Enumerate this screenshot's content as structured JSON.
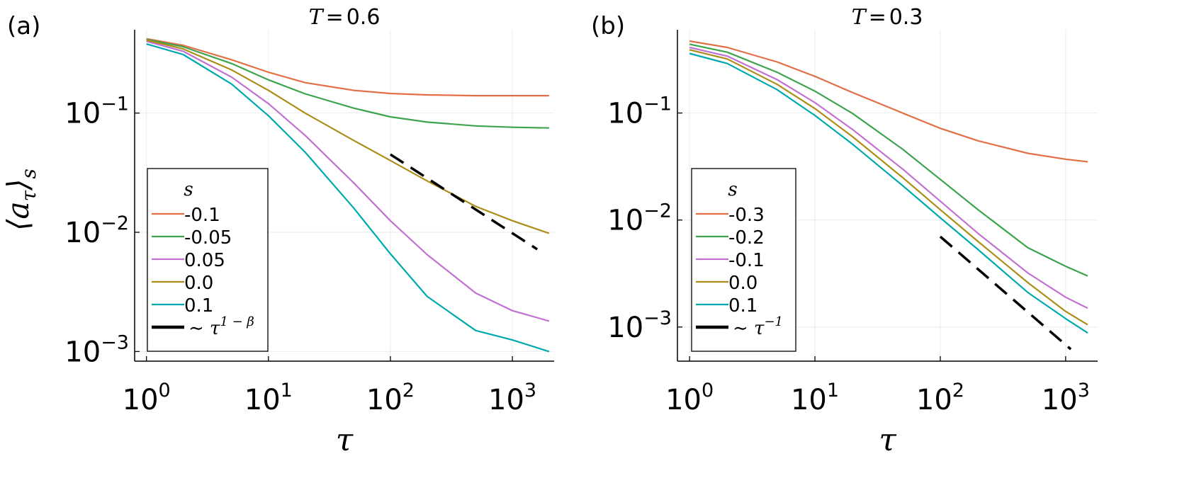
{
  "chart_data": [
    {
      "type": "line",
      "panel_label": "(a)",
      "title_var": "T",
      "title_eq": "=",
      "title_value": "0.6",
      "xlabel": "τ",
      "ylabel": "⟨a",
      "ylabel_sub1": "τ",
      "ylabel_close": "⟩",
      "ylabel_sub2": "s",
      "xscale": "log",
      "yscale": "log",
      "xlim": [
        0.8,
        2200
      ],
      "ylim": [
        0.00083,
        0.5
      ],
      "grid": true,
      "xticks": [
        {
          "value": 1,
          "base": "10",
          "exp": "0"
        },
        {
          "value": 10,
          "base": "10",
          "exp": "1"
        },
        {
          "value": 100,
          "base": "10",
          "exp": "2"
        },
        {
          "value": 1000,
          "base": "10",
          "exp": "3"
        }
      ],
      "yticks": [
        {
          "value": 0.1,
          "base": "10",
          "exp": "−1"
        },
        {
          "value": 0.01,
          "base": "10",
          "exp": "−2"
        },
        {
          "value": 0.001,
          "base": "10",
          "exp": "−3"
        }
      ],
      "legend_title": "s",
      "legend_position": "bottom-left",
      "series": [
        {
          "name": "-0.1",
          "color": "#e26f46",
          "x": [
            1,
            2,
            5,
            10,
            20,
            50,
            100,
            200,
            500,
            1000,
            2000
          ],
          "y": [
            0.42,
            0.37,
            0.28,
            0.22,
            0.18,
            0.155,
            0.146,
            0.142,
            0.14,
            0.14,
            0.14
          ]
        },
        {
          "name": "-0.05",
          "color": "#3da44d",
          "x": [
            1,
            2,
            5,
            10,
            20,
            50,
            100,
            200,
            500,
            1000,
            2000
          ],
          "y": [
            0.415,
            0.36,
            0.26,
            0.19,
            0.145,
            0.11,
            0.093,
            0.084,
            0.078,
            0.076,
            0.075
          ]
        },
        {
          "name": "0.05",
          "color": "#c271d2",
          "x": [
            1,
            2,
            5,
            10,
            20,
            50,
            100,
            200,
            500,
            1000,
            2000
          ],
          "y": [
            0.4,
            0.33,
            0.2,
            0.12,
            0.065,
            0.026,
            0.0125,
            0.0065,
            0.0031,
            0.0022,
            0.0018
          ]
        },
        {
          "name": "0.0",
          "color": "#ac8d18",
          "x": [
            1,
            2,
            5,
            10,
            20,
            50,
            100,
            200,
            500,
            1000,
            2000
          ],
          "y": [
            0.41,
            0.345,
            0.23,
            0.155,
            0.1,
            0.059,
            0.04,
            0.027,
            0.0165,
            0.0125,
            0.0098
          ]
        },
        {
          "name": "0.1",
          "color": "#00a9ad",
          "x": [
            1,
            2,
            5,
            10,
            20,
            50,
            100,
            200,
            500,
            1000,
            2000
          ],
          "y": [
            0.38,
            0.31,
            0.175,
            0.095,
            0.047,
            0.016,
            0.0066,
            0.0029,
            0.0015,
            0.00125,
            0.001
          ]
        }
      ],
      "guide": {
        "name": "∼ τ",
        "exp": "1 − β",
        "color": "#000000",
        "dash": true,
        "x": [
          100,
          1600
        ],
        "y": [
          0.045,
          0.0072
        ]
      }
    },
    {
      "type": "line",
      "panel_label": "(b)",
      "title_var": "T",
      "title_eq": "=",
      "title_value": "0.3",
      "xlabel": "τ",
      "xscale": "log",
      "yscale": "log",
      "xlim": [
        0.8,
        1800
      ],
      "ylim": [
        0.00048,
        0.6
      ],
      "grid": true,
      "xticks": [
        {
          "value": 1,
          "base": "10",
          "exp": "0"
        },
        {
          "value": 10,
          "base": "10",
          "exp": "1"
        },
        {
          "value": 100,
          "base": "10",
          "exp": "2"
        },
        {
          "value": 1000,
          "base": "10",
          "exp": "3"
        }
      ],
      "yticks": [
        {
          "value": 0.1,
          "base": "10",
          "exp": "−1"
        },
        {
          "value": 0.01,
          "base": "10",
          "exp": "−2"
        },
        {
          "value": 0.001,
          "base": "10",
          "exp": "−3"
        }
      ],
      "legend_title": "s",
      "legend_position": "bottom-left",
      "series": [
        {
          "name": "-0.3",
          "color": "#e26f46",
          "x": [
            1,
            2,
            5,
            10,
            20,
            50,
            100,
            200,
            500,
            1000,
            1500
          ],
          "y": [
            0.47,
            0.41,
            0.3,
            0.22,
            0.155,
            0.1,
            0.072,
            0.055,
            0.042,
            0.037,
            0.035
          ]
        },
        {
          "name": "-0.2",
          "color": "#3da44d",
          "x": [
            1,
            2,
            5,
            10,
            20,
            50,
            100,
            200,
            500,
            1000,
            1500
          ],
          "y": [
            0.44,
            0.37,
            0.24,
            0.16,
            0.099,
            0.046,
            0.024,
            0.0125,
            0.0055,
            0.0037,
            0.003
          ]
        },
        {
          "name": "-0.1",
          "color": "#c271d2",
          "x": [
            1,
            2,
            5,
            10,
            20,
            50,
            100,
            200,
            500,
            1000,
            1500
          ],
          "y": [
            0.41,
            0.34,
            0.205,
            0.125,
            0.07,
            0.03,
            0.015,
            0.0075,
            0.0032,
            0.0019,
            0.0015
          ]
        },
        {
          "name": "0.0",
          "color": "#ac8d18",
          "x": [
            1,
            2,
            5,
            10,
            20,
            50,
            100,
            200,
            500,
            1000,
            1500
          ],
          "y": [
            0.39,
            0.32,
            0.185,
            0.11,
            0.06,
            0.025,
            0.0125,
            0.0063,
            0.0026,
            0.0014,
            0.00105
          ]
        },
        {
          "name": "0.1",
          "color": "#00a9ad",
          "x": [
            1,
            2,
            5,
            10,
            20,
            50,
            100,
            200,
            500,
            1000,
            1500
          ],
          "y": [
            0.36,
            0.29,
            0.165,
            0.095,
            0.051,
            0.021,
            0.0105,
            0.0053,
            0.0021,
            0.0012,
            0.00088
          ]
        }
      ],
      "guide": {
        "name": "∼ τ",
        "exp": "−1",
        "color": "#000000",
        "dash": true,
        "x": [
          100,
          1100
        ],
        "y": [
          0.007,
          0.00062
        ]
      }
    }
  ]
}
